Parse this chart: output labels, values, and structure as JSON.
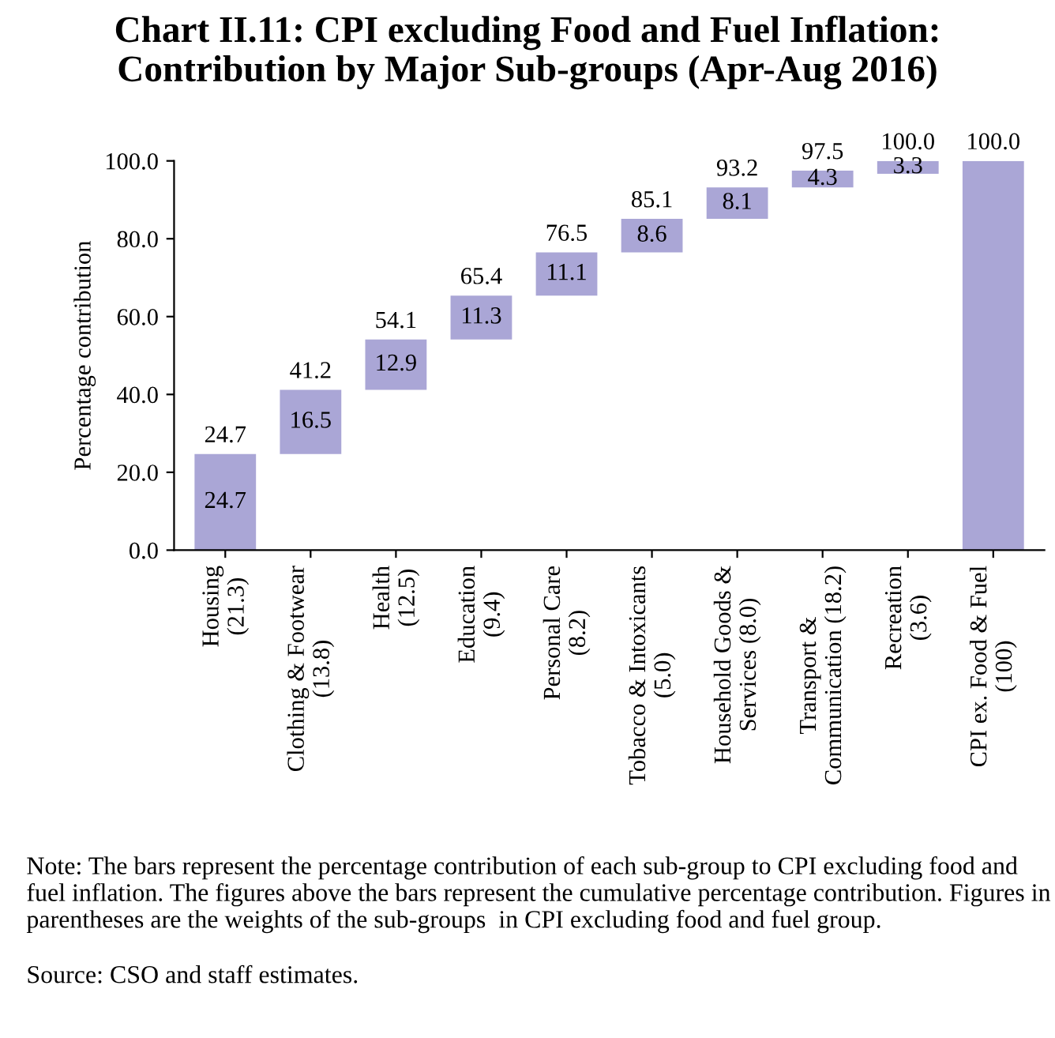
{
  "chart_data": {
    "type": "bar",
    "title": "Chart II.11: CPI excluding Food and Fuel Inflation:\nContribution by Major Sub-groups (Apr-Aug 2016)",
    "ylabel": "Percentage contribution",
    "categories": [
      "Housing\n(21.3)",
      "Clothing & Footwear\n(13.8)",
      "Health\n(12.5)",
      "Education\n(9.4)",
      "Personal Care\n(8.2)",
      "Tobacco & Intoxicants\n(5.0)",
      "Household Goods &\nServices (8.0)",
      "Transport &\nCommunication (18.2)",
      "Recreation\n(3.6)",
      "CPI ex. Food & Fuel\n(100)"
    ],
    "values": [
      24.7,
      16.5,
      12.9,
      11.3,
      11.1,
      8.6,
      8.1,
      4.3,
      3.3,
      100.0
    ],
    "base": [
      0,
      24.7,
      41.2,
      54.1,
      65.4,
      76.5,
      85.1,
      93.2,
      96.7,
      0
    ],
    "value_labels": [
      "24.7",
      "16.5",
      "12.9",
      "11.3",
      "11.1",
      "8.6",
      "8.1",
      "4.3",
      "3.3",
      null
    ],
    "color": "#aaa6d6",
    "ylim": [
      0,
      100
    ],
    "yticks": [
      {
        "value": 0,
        "label": "0.0"
      },
      {
        "value": 20,
        "label": "20.0"
      },
      {
        "value": 40,
        "label": "40.0"
      },
      {
        "value": 60,
        "label": "60.0"
      },
      {
        "value": 80,
        "label": "80.0"
      },
      {
        "value": 100,
        "label": "100.0"
      }
    ],
    "grid": false,
    "annotations": [
      {
        "text": "24.7",
        "x": "Housing\n(21.3)",
        "y": 24.7
      },
      {
        "text": "41.2",
        "x": "Clothing & Footwear\n(13.8)",
        "y": 41.2
      },
      {
        "text": "54.1",
        "x": "Health\n(12.5)",
        "y": 54.1
      },
      {
        "text": "65.4",
        "x": "Education\n(9.4)",
        "y": 65.4
      },
      {
        "text": "76.5",
        "x": "Personal Care\n(8.2)",
        "y": 76.5
      },
      {
        "text": "85.1",
        "x": "Tobacco & Intoxicants\n(5.0)",
        "y": 85.1
      },
      {
        "text": "93.2",
        "x": "Household Goods &\nServices (8.0)",
        "y": 93.2
      },
      {
        "text": "97.5",
        "x": "Transport &\nCommunication (18.2)",
        "y": 97.5
      },
      {
        "text": "100.0",
        "x": "Recreation\n(3.6)",
        "y": 100.0
      },
      {
        "text": "100.0",
        "x": "CPI ex. Food & Fuel\n(100)",
        "y": 100.0
      },
      "Note: The bars represent the percentage contribution of each sub-group to CPI excluding food and fuel inflation. The figures above the bars represent the cumulative percentage contribution. Figures in parentheses are the weights of the sub-groups  in CPI excluding food and fuel group.",
      "Source: CSO and staff estimates."
    ]
  }
}
